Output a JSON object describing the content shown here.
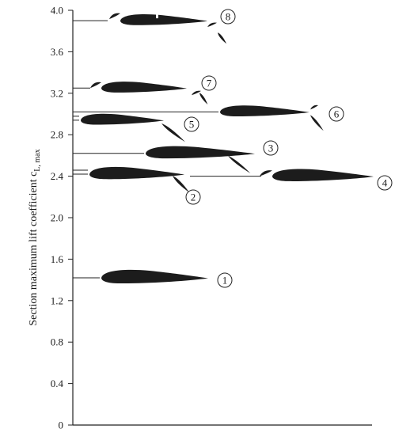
{
  "chart_data": {
    "type": "scatter",
    "ylabel_main": "Section maximum lift coefficient c",
    "ylabel_sub": "L, max",
    "ylim": [
      0,
      4.0
    ],
    "yticks": [
      "0",
      "0.4",
      "0.8",
      "1.2",
      "1.6",
      "2.0",
      "2.4",
      "2.8",
      "3.2",
      "3.6",
      "4.0"
    ],
    "levels": [
      {
        "label": "1",
        "value": 1.42
      },
      {
        "label": "2",
        "value": 2.42
      },
      {
        "label": "3",
        "value": 2.62
      },
      {
        "label": "4",
        "value": 2.4
      },
      {
        "label": "5",
        "value": 2.94
      },
      {
        "label": "6",
        "value": 3.02
      },
      {
        "label": "7",
        "value": 3.25
      },
      {
        "label": "8",
        "value": 3.9
      }
    ]
  }
}
